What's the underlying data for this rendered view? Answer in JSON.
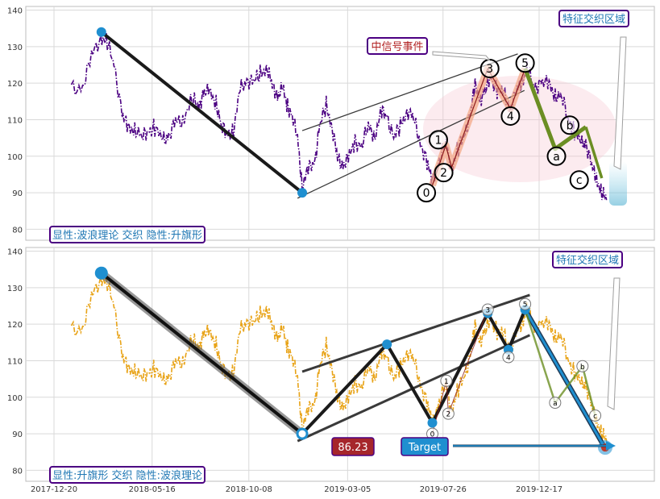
{
  "chart_data": {
    "type": "line",
    "x_ticks": [
      "2017-12-20",
      "2018-05-16",
      "2018-10-08",
      "2019-03-05",
      "2019-07-26",
      "2019-12-17"
    ],
    "y_ticks": [
      80,
      90,
      100,
      110,
      120,
      130,
      140
    ],
    "ylim": [
      77,
      141
    ],
    "grid": true,
    "panels": [
      {
        "name": "top",
        "price_color": "#4b0082",
        "legend_box": "显性:波浪理论 交织 隐性:升旗形",
        "region_label": "特征交织区域",
        "event_label": "中信号事件",
        "trend_line": [
          {
            "x": "2018-03-01",
            "y": 134
          },
          {
            "x": "2018-12-27",
            "y": 90
          }
        ],
        "channel_upper": [
          {
            "x": "2018-12-27",
            "y": 107
          },
          {
            "x": "2019-11-15",
            "y": 128
          }
        ],
        "channel_lower": [
          {
            "x": "2018-12-20",
            "y": 88.5
          },
          {
            "x": "2019-11-25",
            "y": 118
          }
        ],
        "wave_points": [
          {
            "label": "0",
            "x": "2019-07-10",
            "y": 92
          },
          {
            "label": "1",
            "x": "2019-07-30",
            "y": 103
          },
          {
            "label": "2",
            "x": "2019-08-08",
            "y": 97
          },
          {
            "label": "3",
            "x": "2019-10-01",
            "y": 124
          },
          {
            "label": "4",
            "x": "2019-11-04",
            "y": 113
          },
          {
            "label": "5",
            "x": "2019-11-26",
            "y": 124
          }
        ],
        "abc_points": [
          {
            "label": "a",
            "x": "2020-01-10",
            "y": 102
          },
          {
            "label": "b",
            "x": "2020-02-25",
            "y": 108
          },
          {
            "label": "c",
            "x": "2020-03-20",
            "y": 94
          }
        ],
        "wave_label_points": [
          {
            "label": "0",
            "x": "2019-07-01",
            "y": 90
          },
          {
            "label": "1",
            "x": "2019-07-19",
            "y": 104.5
          },
          {
            "label": "2",
            "x": "2019-07-27",
            "y": 95.5
          },
          {
            "label": "3",
            "x": "2019-10-04",
            "y": 124
          },
          {
            "label": "4",
            "x": "2019-11-04",
            "y": 111
          },
          {
            "label": "5",
            "x": "2019-11-26",
            "y": 125.5
          },
          {
            "label": "a",
            "x": "2020-01-12",
            "y": 100
          },
          {
            "label": "b",
            "x": "2020-02-01",
            "y": 108.5
          },
          {
            "label": "c",
            "x": "2020-02-15",
            "y": 93.5
          }
        ]
      },
      {
        "name": "bottom",
        "price_color": "#e8a317",
        "legend_box": "显性:升旗形 交织 隐性:波浪理论",
        "region_label": "特征交织区域",
        "value_label": "86.23",
        "target_label": "Target",
        "trend_line": [
          {
            "x": "2018-03-01",
            "y": 134
          },
          {
            "x": "2018-12-27",
            "y": 90
          }
        ],
        "channel_upper": [
          {
            "x": "2018-12-27",
            "y": 107
          },
          {
            "x": "2019-12-03",
            "y": 128
          }
        ],
        "channel_lower": [
          {
            "x": "2018-12-20",
            "y": 88
          },
          {
            "x": "2019-12-03",
            "y": 117
          }
        ],
        "zigzag": [
          {
            "x": "2018-12-27",
            "y": 90
          },
          {
            "x": "2019-05-03",
            "y": 114.5
          },
          {
            "x": "2019-07-10",
            "y": 93
          },
          {
            "x": "2019-10-01",
            "y": 123
          },
          {
            "x": "2019-11-01",
            "y": 113
          },
          {
            "x": "2019-11-26",
            "y": 124
          },
          {
            "x": "2020-03-25",
            "y": 86
          }
        ],
        "wave_label_points": [
          {
            "label": "0",
            "x": "2019-07-10",
            "y": 90
          },
          {
            "label": "1",
            "x": "2019-07-31",
            "y": 104.5
          },
          {
            "label": "2",
            "x": "2019-08-03",
            "y": 95.5
          },
          {
            "label": "3",
            "x": "2019-10-01",
            "y": 124
          },
          {
            "label": "4",
            "x": "2019-11-01",
            "y": 111
          },
          {
            "label": "5",
            "x": "2019-11-26",
            "y": 125.5
          },
          {
            "label": "a",
            "x": "2020-01-10",
            "y": 98.5
          },
          {
            "label": "b",
            "x": "2020-02-20",
            "y": 108.5
          },
          {
            "label": "c",
            "x": "2020-03-10",
            "y": 95
          }
        ],
        "target_point": {
          "x": "2020-03-25",
          "y": 86.23
        }
      }
    ],
    "price_series": [
      {
        "x": "2018-01-15",
        "y": 118.5
      },
      {
        "x": "2018-02-01",
        "y": 119
      },
      {
        "x": "2018-02-14",
        "y": 127
      },
      {
        "x": "2018-02-28",
        "y": 133
      },
      {
        "x": "2018-03-10",
        "y": 131
      },
      {
        "x": "2018-03-20",
        "y": 125
      },
      {
        "x": "2018-04-01",
        "y": 112
      },
      {
        "x": "2018-04-10",
        "y": 107
      },
      {
        "x": "2018-04-20",
        "y": 108
      },
      {
        "x": "2018-05-01",
        "y": 105
      },
      {
        "x": "2018-05-10",
        "y": 107
      },
      {
        "x": "2018-05-20",
        "y": 108
      },
      {
        "x": "2018-06-01",
        "y": 104
      },
      {
        "x": "2018-06-10",
        "y": 106
      },
      {
        "x": "2018-06-20",
        "y": 109
      },
      {
        "x": "2018-07-01",
        "y": 110
      },
      {
        "x": "2018-07-15",
        "y": 116
      },
      {
        "x": "2018-07-25",
        "y": 113
      },
      {
        "x": "2018-08-01",
        "y": 118
      },
      {
        "x": "2018-08-10",
        "y": 117
      },
      {
        "x": "2018-08-20",
        "y": 115
      },
      {
        "x": "2018-08-28",
        "y": 108
      },
      {
        "x": "2018-09-05",
        "y": 106
      },
      {
        "x": "2018-09-15",
        "y": 107
      },
      {
        "x": "2018-09-25",
        "y": 118
      },
      {
        "x": "2018-10-05",
        "y": 121
      },
      {
        "x": "2018-10-15",
        "y": 120
      },
      {
        "x": "2018-10-25",
        "y": 123
      },
      {
        "x": "2018-11-05",
        "y": 124
      },
      {
        "x": "2018-11-12",
        "y": 119
      },
      {
        "x": "2018-11-20",
        "y": 117
      },
      {
        "x": "2018-11-28",
        "y": 118
      },
      {
        "x": "2018-12-05",
        "y": 114
      },
      {
        "x": "2018-12-12",
        "y": 111
      },
      {
        "x": "2018-12-20",
        "y": 105
      },
      {
        "x": "2018-12-27",
        "y": 92
      },
      {
        "x": "2019-01-05",
        "y": 96
      },
      {
        "x": "2019-01-15",
        "y": 99
      },
      {
        "x": "2019-01-22",
        "y": 108
      },
      {
        "x": "2019-02-01",
        "y": 114
      },
      {
        "x": "2019-02-10",
        "y": 108
      },
      {
        "x": "2019-02-18",
        "y": 99
      },
      {
        "x": "2019-02-26",
        "y": 98
      },
      {
        "x": "2019-03-06",
        "y": 99
      },
      {
        "x": "2019-03-16",
        "y": 104
      },
      {
        "x": "2019-03-26",
        "y": 103
      },
      {
        "x": "2019-04-05",
        "y": 108
      },
      {
        "x": "2019-04-15",
        "y": 106
      },
      {
        "x": "2019-04-25",
        "y": 112
      },
      {
        "x": "2019-05-03",
        "y": 111
      },
      {
        "x": "2019-05-13",
        "y": 105
      },
      {
        "x": "2019-05-23",
        "y": 108
      },
      {
        "x": "2019-06-02",
        "y": 113
      },
      {
        "x": "2019-06-12",
        "y": 110
      },
      {
        "x": "2019-06-22",
        "y": 104
      },
      {
        "x": "2019-07-02",
        "y": 98
      },
      {
        "x": "2019-07-10",
        "y": 93
      },
      {
        "x": "2019-07-20",
        "y": 99
      },
      {
        "x": "2019-07-30",
        "y": 103
      },
      {
        "x": "2019-08-08",
        "y": 97
      },
      {
        "x": "2019-08-18",
        "y": 102
      },
      {
        "x": "2019-08-28",
        "y": 106
      },
      {
        "x": "2019-09-05",
        "y": 112
      },
      {
        "x": "2019-09-12",
        "y": 119
      },
      {
        "x": "2019-09-20",
        "y": 116
      },
      {
        "x": "2019-09-28",
        "y": 118
      },
      {
        "x": "2019-10-05",
        "y": 122
      },
      {
        "x": "2019-10-15",
        "y": 118
      },
      {
        "x": "2019-10-25",
        "y": 117
      },
      {
        "x": "2019-11-04",
        "y": 113
      },
      {
        "x": "2019-11-14",
        "y": 118
      },
      {
        "x": "2019-11-22",
        "y": 121
      },
      {
        "x": "2019-11-30",
        "y": 124
      },
      {
        "x": "2019-12-10",
        "y": 118
      },
      {
        "x": "2019-12-20",
        "y": 121
      },
      {
        "x": "2020-01-01",
        "y": 119
      },
      {
        "x": "2020-01-10",
        "y": 117
      },
      {
        "x": "2020-01-20",
        "y": 116
      },
      {
        "x": "2020-01-30",
        "y": 110
      },
      {
        "x": "2020-02-08",
        "y": 107
      },
      {
        "x": "2020-02-18",
        "y": 103
      },
      {
        "x": "2020-02-25",
        "y": 104
      },
      {
        "x": "2020-03-05",
        "y": 97
      },
      {
        "x": "2020-03-12",
        "y": 94
      },
      {
        "x": "2020-03-20",
        "y": 90
      },
      {
        "x": "2020-03-27",
        "y": 88
      }
    ]
  }
}
